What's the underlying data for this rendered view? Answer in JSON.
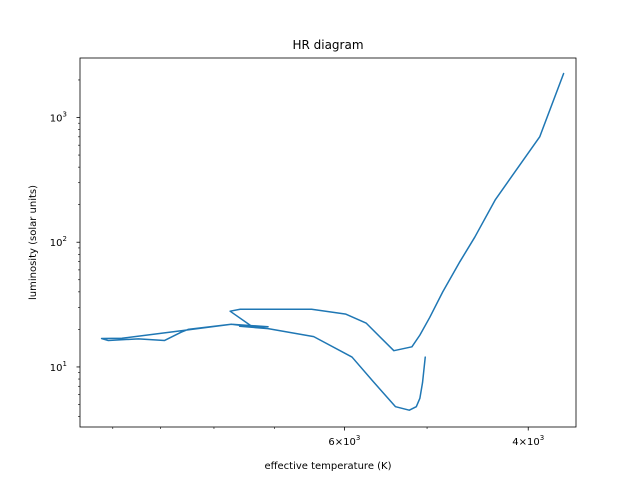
{
  "chart_data": {
    "type": "line",
    "title": "HR diagram",
    "xlabel": "effective temperature (K)",
    "ylabel": "luminosity (solar units)",
    "x_scale": "log",
    "x_inverted": true,
    "y_scale": "log",
    "xlim": [
      10750,
      3600
    ],
    "ylim": [
      3.3,
      3000
    ],
    "grid": false,
    "x_ticks": [
      {
        "value": 6000,
        "mantissa": "6",
        "base": "10",
        "exp": "3"
      },
      {
        "value": 4000,
        "mantissa": "4",
        "base": "10",
        "exp": "3"
      }
    ],
    "x_minor_ticks": [
      10000,
      9000,
      8000,
      7000,
      5000
    ],
    "y_ticks": [
      {
        "value": 10,
        "base": "10",
        "exp": "1"
      },
      {
        "value": 100,
        "base": "10",
        "exp": "2"
      },
      {
        "value": 1000,
        "base": "10",
        "exp": "3"
      }
    ],
    "y_minor_ticks": [
      4,
      5,
      6,
      7,
      8,
      9,
      20,
      30,
      40,
      50,
      60,
      70,
      80,
      90,
      200,
      300,
      400,
      500,
      600,
      700,
      800,
      900,
      2000
    ],
    "series": [
      {
        "color": "#1f77b4",
        "points": [
          [
            5020,
            12.0
          ],
          [
            5050,
            7.5
          ],
          [
            5080,
            5.6
          ],
          [
            5120,
            4.8
          ],
          [
            5200,
            4.5
          ],
          [
            5360,
            4.8
          ],
          [
            5620,
            7.5
          ],
          [
            5900,
            12.0
          ],
          [
            6420,
            17.5
          ],
          [
            7100,
            20.3
          ],
          [
            7560,
            21.2
          ],
          [
            7100,
            21.0
          ],
          [
            7700,
            22.0
          ],
          [
            8470,
            20.0
          ],
          [
            8600,
            19.0
          ],
          [
            8920,
            16.3
          ],
          [
            9450,
            16.8
          ],
          [
            10100,
            16.3
          ],
          [
            10250,
            16.9
          ],
          [
            9800,
            17.0
          ],
          [
            8600,
            19.5
          ],
          [
            7700,
            22.0
          ],
          [
            7350,
            21.0
          ],
          [
            7720,
            28.0
          ],
          [
            7550,
            29.0
          ],
          [
            7150,
            29.0
          ],
          [
            6450,
            29.0
          ],
          [
            5980,
            26.5
          ],
          [
            5720,
            22.5
          ],
          [
            5380,
            13.5
          ],
          [
            5170,
            14.5
          ],
          [
            5080,
            18.0
          ],
          [
            4970,
            25.0
          ],
          [
            4830,
            40.0
          ],
          [
            4650,
            70.0
          ],
          [
            4500,
            110.0
          ],
          [
            4300,
            220.0
          ],
          [
            3900,
            700.0
          ],
          [
            3700,
            2250.0
          ]
        ]
      }
    ]
  }
}
